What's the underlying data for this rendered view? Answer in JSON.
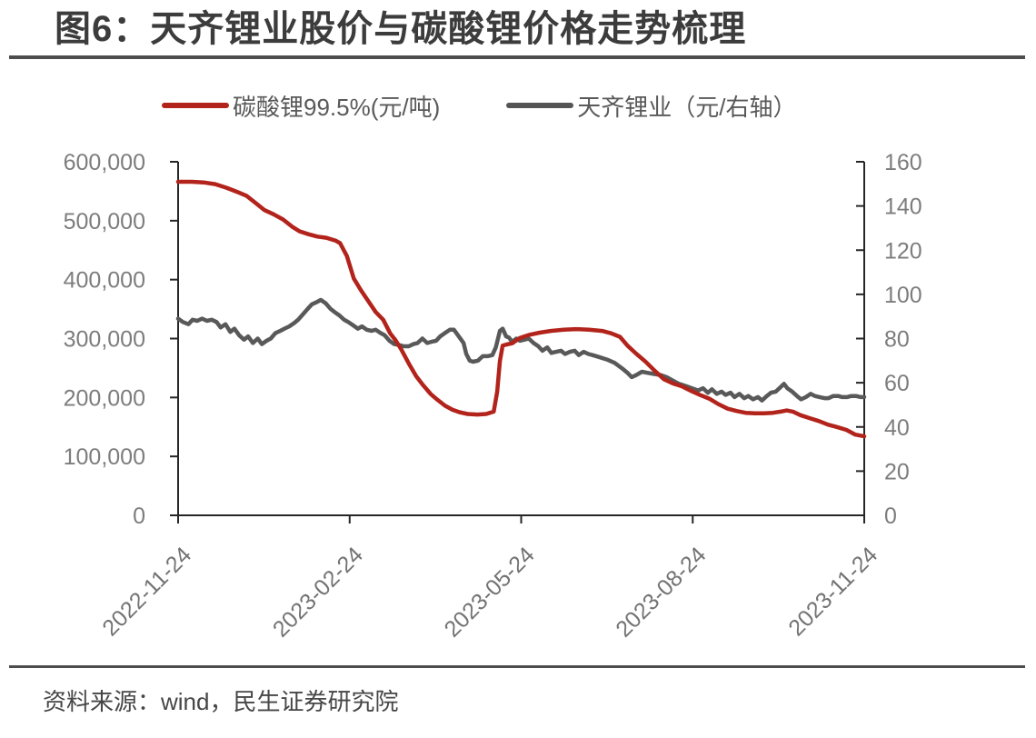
{
  "page": {
    "title": "图6：天齐锂业股价与碳酸锂价格走势梳理",
    "source": "资料来源：wind，民生证券研究院"
  },
  "legend": [
    {
      "label": "碳酸锂99.5%(元/吨)",
      "color": "#b2231b"
    },
    {
      "label": "天齐锂业（元/右轴）",
      "color": "#545454"
    }
  ],
  "chart_data": {
    "type": "line",
    "title": "图6：天齐锂业股价与碳酸锂价格走势梳理",
    "grid": false,
    "legend_position": "top",
    "left_axis": {
      "min": 0,
      "max": 600000,
      "step": 100000,
      "tick_values": [
        0,
        100000,
        200000,
        300000,
        400000,
        500000,
        600000
      ],
      "tick_labels": [
        "0",
        "100,000",
        "200,000",
        "300,000",
        "400,000",
        "500,000",
        "600,000"
      ]
    },
    "right_axis": {
      "min": 0,
      "max": 160,
      "step": 20,
      "tick_values": [
        0,
        20,
        40,
        60,
        80,
        100,
        120,
        140,
        160
      ],
      "tick_labels": [
        "0",
        "20",
        "40",
        "60",
        "80",
        "100",
        "120",
        "140",
        "160"
      ]
    },
    "x_tick_labels": [
      "2022-11-24",
      "2023-02-24",
      "2023-05-24",
      "2023-08-24",
      "2023-11-24"
    ],
    "series": [
      {
        "name": "天齐锂业（元/右轴）",
        "axis": "right",
        "color": "#595959",
        "unit": "元",
        "points": [
          [
            0,
            89
          ],
          [
            0.7,
            87.5
          ],
          [
            1.5,
            86.5
          ],
          [
            2.1,
            88.5
          ],
          [
            2.8,
            88
          ],
          [
            3.5,
            89
          ],
          [
            4.2,
            88
          ],
          [
            4.9,
            88.5
          ],
          [
            5.6,
            87.5
          ],
          [
            6.2,
            85
          ],
          [
            6.9,
            86.5
          ],
          [
            7.6,
            83
          ],
          [
            8.2,
            84.5
          ],
          [
            8.9,
            81.5
          ],
          [
            9.6,
            79.5
          ],
          [
            10.2,
            81
          ],
          [
            10.9,
            78
          ],
          [
            11.6,
            80
          ],
          [
            12.2,
            77.5
          ],
          [
            12.9,
            79
          ],
          [
            13.5,
            80
          ],
          [
            14.2,
            82.5
          ],
          [
            14.9,
            83.5
          ],
          [
            15.5,
            84.5
          ],
          [
            16.2,
            85.5
          ],
          [
            16.9,
            87
          ],
          [
            17.5,
            88.5
          ],
          [
            18.2,
            91
          ],
          [
            18.9,
            93.5
          ],
          [
            19.5,
            95.5
          ],
          [
            20.2,
            96.5
          ],
          [
            20.8,
            97.5
          ],
          [
            21.5,
            96
          ],
          [
            22.2,
            93.5
          ],
          [
            22.8,
            92
          ],
          [
            23.5,
            90.5
          ],
          [
            24.2,
            88.5
          ],
          [
            24.8,
            87.5
          ],
          [
            25.5,
            86
          ],
          [
            26.2,
            84.5
          ],
          [
            26.8,
            85.5
          ],
          [
            27.5,
            84
          ],
          [
            28.2,
            83.5
          ],
          [
            28.8,
            84
          ],
          [
            29.5,
            82.5
          ],
          [
            30.1,
            81.5
          ],
          [
            30.8,
            79
          ],
          [
            31.5,
            77.5
          ],
          [
            32.3,
            77
          ],
          [
            32.9,
            76.5
          ],
          [
            33.6,
            76.5
          ],
          [
            34.3,
            77.5
          ],
          [
            34.9,
            78
          ],
          [
            35.6,
            80
          ],
          [
            36.3,
            78
          ],
          [
            36.9,
            78.5
          ],
          [
            37.6,
            79
          ],
          [
            38.2,
            81
          ],
          [
            38.9,
            82.5
          ],
          [
            39.6,
            84
          ],
          [
            40.2,
            84
          ],
          [
            40.9,
            81
          ],
          [
            41.6,
            78
          ],
          [
            42,
            73
          ],
          [
            42.5,
            70
          ],
          [
            43,
            69.5
          ],
          [
            43.7,
            70
          ],
          [
            44.4,
            72
          ],
          [
            45.1,
            72
          ],
          [
            45.8,
            72.5
          ],
          [
            46.3,
            76
          ],
          [
            46.9,
            83.5
          ],
          [
            47.3,
            84.5
          ],
          [
            47.8,
            81
          ],
          [
            48.2,
            80.5
          ],
          [
            48.7,
            78.5
          ],
          [
            49.3,
            80
          ],
          [
            49.8,
            79
          ],
          [
            50.5,
            79.5
          ],
          [
            51.1,
            80
          ],
          [
            51.8,
            78
          ],
          [
            52.5,
            76.5
          ],
          [
            53.1,
            74.5
          ],
          [
            53.8,
            76
          ],
          [
            54.4,
            73.5
          ],
          [
            55.1,
            74
          ],
          [
            55.8,
            74.5
          ],
          [
            56.4,
            73
          ],
          [
            57.1,
            74
          ],
          [
            57.8,
            74.5
          ],
          [
            58.4,
            72.5
          ],
          [
            59.1,
            74
          ],
          [
            59.8,
            73
          ],
          [
            60.4,
            72.5
          ],
          [
            61.5,
            71.5
          ],
          [
            62.5,
            70.5
          ],
          [
            63.6,
            69
          ],
          [
            64.7,
            66.5
          ],
          [
            65.5,
            64.5
          ],
          [
            66.1,
            62.5
          ],
          [
            66.8,
            63.5
          ],
          [
            67.6,
            65
          ],
          [
            68.4,
            64.5
          ],
          [
            69.3,
            64
          ],
          [
            70.3,
            63.5
          ],
          [
            71.2,
            62.5
          ],
          [
            72.1,
            61
          ],
          [
            73,
            59.5
          ],
          [
            74,
            58.5
          ],
          [
            74.9,
            57.5
          ],
          [
            75.8,
            56.5
          ],
          [
            76.5,
            57.5
          ],
          [
            77.2,
            55.5
          ],
          [
            77.8,
            57
          ],
          [
            78.5,
            55
          ],
          [
            79.2,
            56
          ],
          [
            79.8,
            54.5
          ],
          [
            80.5,
            55.5
          ],
          [
            81.1,
            53.5
          ],
          [
            81.8,
            55
          ],
          [
            82.5,
            53
          ],
          [
            83.1,
            54
          ],
          [
            83.8,
            52.5
          ],
          [
            84.5,
            53.5
          ],
          [
            85.1,
            52
          ],
          [
            85.8,
            54
          ],
          [
            86.4,
            55.5
          ],
          [
            87.1,
            56
          ],
          [
            87.8,
            58
          ],
          [
            88.3,
            59.5
          ],
          [
            88.8,
            57.5
          ],
          [
            89.5,
            56
          ],
          [
            90.2,
            54
          ],
          [
            90.8,
            52.5
          ],
          [
            91.5,
            53.5
          ],
          [
            92.2,
            55
          ],
          [
            92.8,
            54
          ],
          [
            93.5,
            53.5
          ],
          [
            94.2,
            53
          ],
          [
            94.8,
            53
          ],
          [
            95.5,
            54
          ],
          [
            96.2,
            54
          ],
          [
            96.8,
            53.5
          ],
          [
            97.5,
            53.5
          ],
          [
            98.1,
            54
          ],
          [
            98.8,
            54
          ],
          [
            99.5,
            53.5
          ],
          [
            100,
            53.5
          ]
        ]
      },
      {
        "name": "碳酸锂99.5%(元/吨)",
        "axis": "left",
        "color": "#b2231b",
        "unit": "元/吨",
        "points": [
          [
            0,
            566000
          ],
          [
            2,
            566000
          ],
          [
            3.7,
            565000
          ],
          [
            5.4,
            562000
          ],
          [
            7,
            556000
          ],
          [
            8.6,
            549000
          ],
          [
            10,
            542000
          ],
          [
            11.3,
            530000
          ],
          [
            12.6,
            518000
          ],
          [
            13.9,
            511000
          ],
          [
            15.3,
            502000
          ],
          [
            16.6,
            490000
          ],
          [
            17.7,
            482000
          ],
          [
            19,
            477000
          ],
          [
            20.3,
            473000
          ],
          [
            21.6,
            471000
          ],
          [
            23,
            466000
          ],
          [
            23.6,
            462000
          ],
          [
            24.6,
            440000
          ],
          [
            25.6,
            402000
          ],
          [
            26.7,
            381000
          ],
          [
            27.8,
            362000
          ],
          [
            28.8,
            345000
          ],
          [
            29.9,
            332000
          ],
          [
            30.9,
            309000
          ],
          [
            31.7,
            297000
          ],
          [
            32.5,
            282000
          ],
          [
            33.6,
            258000
          ],
          [
            34.7,
            236000
          ],
          [
            35.7,
            221000
          ],
          [
            36.8,
            206000
          ],
          [
            37.8,
            196000
          ],
          [
            38.9,
            186000
          ],
          [
            40,
            179000
          ],
          [
            41,
            175000
          ],
          [
            42.2,
            172000
          ],
          [
            43.6,
            171000
          ],
          [
            44.9,
            172000
          ],
          [
            46,
            176000
          ],
          [
            46.5,
            210000
          ],
          [
            46.9,
            262000
          ],
          [
            47.3,
            288000
          ],
          [
            47.9,
            290000
          ],
          [
            48.7,
            292000
          ],
          [
            49.8,
            301000
          ],
          [
            51.1,
            306000
          ],
          [
            52.7,
            310000
          ],
          [
            54.3,
            313000
          ],
          [
            56.2,
            315000
          ],
          [
            58,
            316000
          ],
          [
            59.9,
            315000
          ],
          [
            61.8,
            313000
          ],
          [
            63.1,
            309000
          ],
          [
            64.4,
            303000
          ],
          [
            65.5,
            288000
          ],
          [
            66.8,
            274000
          ],
          [
            68.1,
            261000
          ],
          [
            69.5,
            245000
          ],
          [
            70.8,
            231000
          ],
          [
            72.1,
            224000
          ],
          [
            73.4,
            219000
          ],
          [
            74.8,
            211000
          ],
          [
            76.1,
            204000
          ],
          [
            77.4,
            198000
          ],
          [
            78.7,
            189000
          ],
          [
            80.1,
            181000
          ],
          [
            81.4,
            177000
          ],
          [
            82.7,
            174000
          ],
          [
            84.1,
            173000
          ],
          [
            85.4,
            173000
          ],
          [
            86.7,
            174000
          ],
          [
            87.8,
            176000
          ],
          [
            88.7,
            178000
          ],
          [
            89.6,
            176000
          ],
          [
            90.7,
            170000
          ],
          [
            92,
            165000
          ],
          [
            93.4,
            160000
          ],
          [
            94.7,
            154000
          ],
          [
            96,
            150000
          ],
          [
            97.4,
            145000
          ],
          [
            98.7,
            137000
          ],
          [
            100,
            134000
          ]
        ]
      }
    ]
  }
}
